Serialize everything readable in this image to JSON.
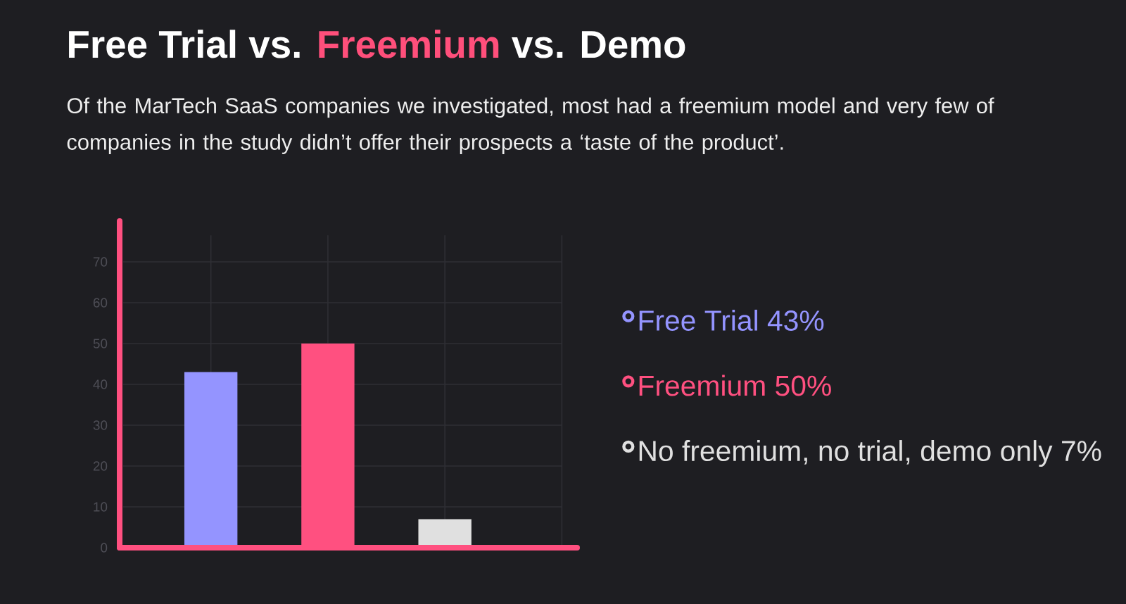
{
  "chart_data": {
    "type": "bar",
    "title": "Free Trial vs. **Freemium** vs. Demo",
    "subtitle": "Of the MarTech SaaS companies we investigated, most had a freemium model and very few of companies in the study didn’t offer their prospects a ‘taste of the product’.",
    "categories": [
      null,
      null,
      null
    ],
    "series": [
      {
        "name": "Free Trial 43%",
        "color": "#9494FF",
        "values": [
          43,
          null,
          null
        ]
      },
      {
        "name": "Freemium 50%",
        "color": "#FF5080",
        "values": [
          null,
          50,
          null
        ]
      },
      {
        "name": "No freemium, no trial, demo only 7%",
        "color": "#E0E0E0",
        "values": [
          null,
          null,
          7
        ]
      }
    ],
    "ylim": [
      0,
      80
    ],
    "yticks": [
      0,
      10,
      20,
      30,
      40,
      50,
      60,
      70
    ],
    "grid": true,
    "legend": "right"
  }
}
